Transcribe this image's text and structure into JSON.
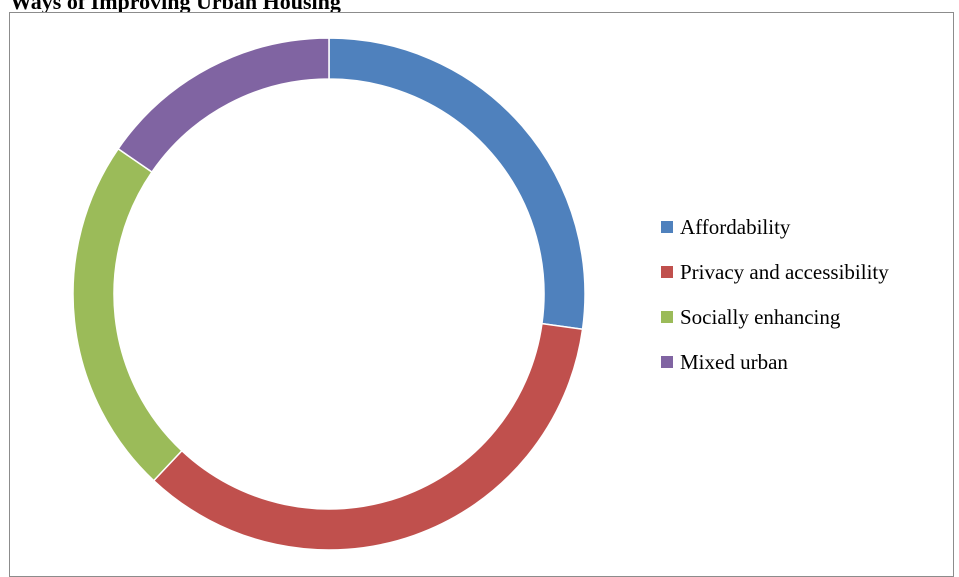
{
  "page": {
    "title": "Ways of Improving Urban Housing"
  },
  "chart_data": {
    "type": "pie",
    "style": "donut",
    "title": "Ways of Improving Urban Housing",
    "categories": [
      "Affordability",
      "Privacy and accessibility",
      "Socially enhancing",
      "Mixed urban"
    ],
    "values": [
      27.2,
      34.8,
      22.6,
      15.4
    ],
    "colors": [
      "#4f81bd",
      "#c0504d",
      "#9bbb59",
      "#8064a2"
    ],
    "legend_position": "right",
    "data_labels": false
  }
}
